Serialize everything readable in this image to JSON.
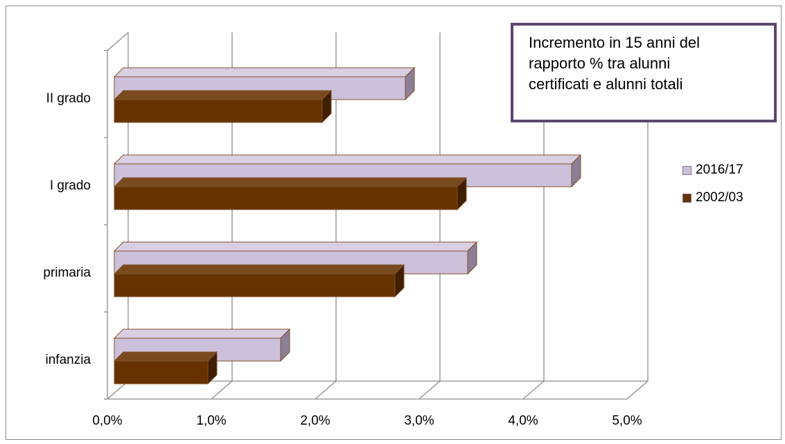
{
  "chart_data": {
    "type": "bar",
    "orientation": "horizontal",
    "style": "3d-clustered",
    "categories": [
      "infanzia",
      "primaria",
      "I grado",
      "II grado"
    ],
    "series": [
      {
        "name": "2016/17",
        "values": [
          1.6,
          3.4,
          4.4,
          2.8
        ],
        "color": "#ccc0da"
      },
      {
        "name": "2002/03",
        "values": [
          0.9,
          2.7,
          3.3,
          2.0
        ],
        "color": "#663300"
      }
    ],
    "xlim": [
      0,
      5
    ],
    "xticks": [
      "0,0%",
      "1,0%",
      "2,0%",
      "3,0%",
      "4,0%",
      "5,0%"
    ],
    "grid": true,
    "legend_position": "right"
  },
  "annotation": {
    "lines": [
      "Incremento in 15 anni del",
      "rapporto % tra alunni",
      "certificati e alunni totali"
    ],
    "border_color": "#5b4770"
  },
  "colors": {
    "gridline": "#8c8c8c",
    "bar_edge": "#7f4f2a",
    "light_side": "#8c7f96",
    "dark_side": "#3f1f00"
  }
}
